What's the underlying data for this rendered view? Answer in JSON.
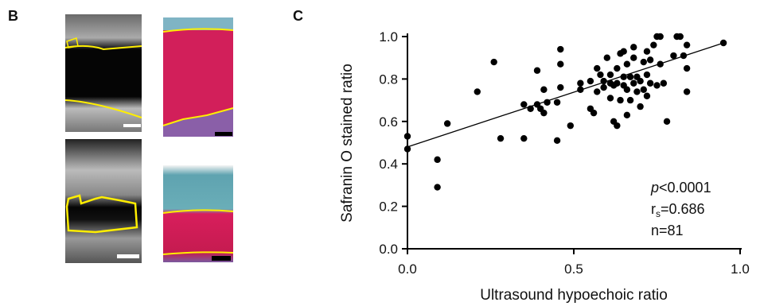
{
  "panels": {
    "b": "B",
    "c": "C"
  },
  "chart_data": {
    "type": "scatter",
    "xlabel": "Ultrasound hypoechoic ratio",
    "ylabel": "Safranin O stained ratio",
    "xlim": [
      0,
      1
    ],
    "ylim": [
      0,
      1
    ],
    "xticks": [
      {
        "value": 0,
        "label": "0.0"
      },
      {
        "value": 0.5,
        "label": "0.5"
      },
      {
        "value": 1,
        "label": "1.0"
      }
    ],
    "yticks": [
      {
        "value": 0,
        "label": "0.0"
      },
      {
        "value": 0.2,
        "label": "0.2"
      },
      {
        "value": 0.4,
        "label": "0.4"
      },
      {
        "value": 0.6,
        "label": "0.6"
      },
      {
        "value": 0.8,
        "label": "0.8"
      },
      {
        "value": 1,
        "label": "1.0"
      }
    ],
    "color": "#000000",
    "x": [
      0,
      0,
      0.09,
      0.09,
      0.12,
      0.21,
      0.26,
      0.28,
      0.35,
      0.35,
      0.37,
      0.39,
      0.39,
      0.4,
      0.41,
      0.41,
      0.42,
      0.45,
      0.45,
      0.46,
      0.46,
      0.46,
      0.49,
      0.52,
      0.52,
      0.55,
      0.55,
      0.56,
      0.57,
      0.57,
      0.58,
      0.59,
      0.59,
      0.6,
      0.61,
      0.61,
      0.61,
      0.62,
      0.62,
      0.63,
      0.63,
      0.63,
      0.64,
      0.64,
      0.65,
      0.65,
      0.66,
      0.66,
      0.66,
      0.67,
      0.67,
      0.68,
      0.68,
      0.69,
      0.69,
      0.7,
      0.7,
      0.71,
      0.71,
      0.72,
      0.72,
      0.72,
      0.73,
      0.73,
      0.74,
      0.75,
      0.75,
      0.76,
      0.76,
      0.77,
      0.78,
      0.8,
      0.81,
      0.82,
      0.83,
      0.84,
      0.84,
      0.84,
      0.95,
      0.68,
      0.65
    ],
    "y": [
      0.53,
      0.47,
      0.42,
      0.29,
      0.59,
      0.74,
      0.88,
      0.52,
      0.52,
      0.68,
      0.66,
      0.84,
      0.68,
      0.66,
      0.75,
      0.64,
      0.69,
      0.69,
      0.51,
      0.76,
      0.94,
      0.87,
      0.58,
      0.78,
      0.75,
      0.79,
      0.66,
      0.64,
      0.74,
      0.85,
      0.82,
      0.76,
      0.79,
      0.9,
      0.71,
      0.82,
      0.78,
      0.77,
      0.6,
      0.85,
      0.58,
      0.78,
      0.7,
      0.92,
      0.77,
      0.81,
      0.63,
      0.87,
      0.75,
      0.81,
      0.7,
      0.9,
      0.78,
      0.74,
      0.81,
      0.67,
      0.79,
      0.88,
      0.75,
      0.93,
      0.82,
      0.72,
      0.89,
      0.78,
      0.96,
      1.0,
      0.77,
      1.0,
      0.87,
      0.78,
      0.6,
      0.91,
      1.0,
      1.0,
      0.91,
      0.85,
      0.96,
      0.74,
      0.97,
      0.95,
      0.93
    ],
    "fit_line": {
      "x": [
        0,
        0.95
      ],
      "y": [
        0.48,
        0.97
      ]
    },
    "annotations": {
      "p_italic": "p",
      "p_rest": "<0.0001",
      "r_base": "r",
      "r_sub": "s",
      "r_rest": "=0.686",
      "n": "n=81"
    }
  }
}
